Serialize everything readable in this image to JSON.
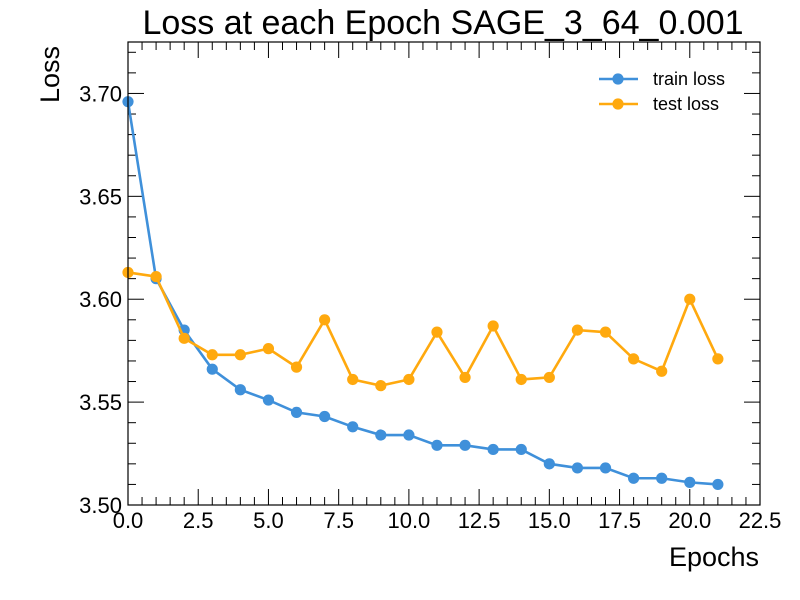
{
  "chart_data": {
    "type": "line",
    "title": "Loss at each Epoch SAGE_3_64_0.001",
    "xlabel": "Epochs",
    "ylabel": "Loss",
    "xlim": [
      0,
      22.5
    ],
    "ylim": [
      3.5,
      3.725
    ],
    "x_ticks": [
      "0.0",
      "2.5",
      "5.0",
      "7.5",
      "10.0",
      "12.5",
      "15.0",
      "17.5",
      "20.0",
      "22.5"
    ],
    "y_ticks": [
      "3.50",
      "3.55",
      "3.60",
      "3.65",
      "3.70"
    ],
    "x_tick_values": [
      0,
      2.5,
      5,
      7.5,
      10,
      12.5,
      15,
      17.5,
      20,
      22.5
    ],
    "y_tick_values": [
      3.5,
      3.55,
      3.6,
      3.65,
      3.7
    ],
    "grid": false,
    "legend_position": "top-right",
    "x": [
      0,
      1,
      2,
      3,
      4,
      5,
      6,
      7,
      8,
      9,
      10,
      11,
      12,
      13,
      14,
      15,
      16,
      17,
      18,
      19,
      20,
      21
    ],
    "series": [
      {
        "name": "train loss",
        "color": "#3f90da",
        "values": [
          3.696,
          3.61,
          3.585,
          3.566,
          3.556,
          3.551,
          3.545,
          3.543,
          3.538,
          3.534,
          3.534,
          3.529,
          3.529,
          3.527,
          3.527,
          3.52,
          3.518,
          3.518,
          3.513,
          3.513,
          3.511,
          3.51
        ]
      },
      {
        "name": "test loss",
        "color": "#ffa90e",
        "values": [
          3.613,
          3.611,
          3.581,
          3.573,
          3.573,
          3.576,
          3.567,
          3.59,
          3.561,
          3.558,
          3.561,
          3.584,
          3.562,
          3.587,
          3.561,
          3.562,
          3.585,
          3.584,
          3.571,
          3.565,
          3.6,
          3.571
        ]
      }
    ]
  }
}
